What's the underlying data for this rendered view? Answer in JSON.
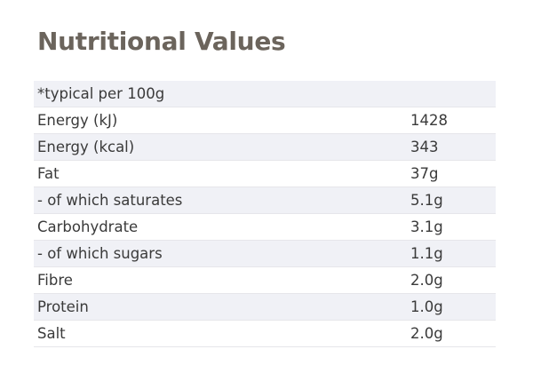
{
  "title": "Nutritional Values",
  "table": {
    "header": "*typical per 100g",
    "rows": [
      {
        "label": "Energy (kJ)",
        "value": "1428"
      },
      {
        "label": "Energy (kcal)",
        "value": "343"
      },
      {
        "label": "Fat",
        "value": "37g"
      },
      {
        "label": "- of which saturates",
        "value": "5.1g"
      },
      {
        "label": "Carbohydrate",
        "value": "3.1g"
      },
      {
        "label": "- of which sugars",
        "value": "1.1g"
      },
      {
        "label": "Fibre",
        "value": "2.0g"
      },
      {
        "label": "Protein",
        "value": "1.0g"
      },
      {
        "label": "Salt",
        "value": "2.0g"
      }
    ]
  },
  "colors": {
    "title": "#6b645c",
    "text": "#3a3a3a",
    "stripe": "#f0f1f6",
    "divider": "#e6e6ea"
  }
}
